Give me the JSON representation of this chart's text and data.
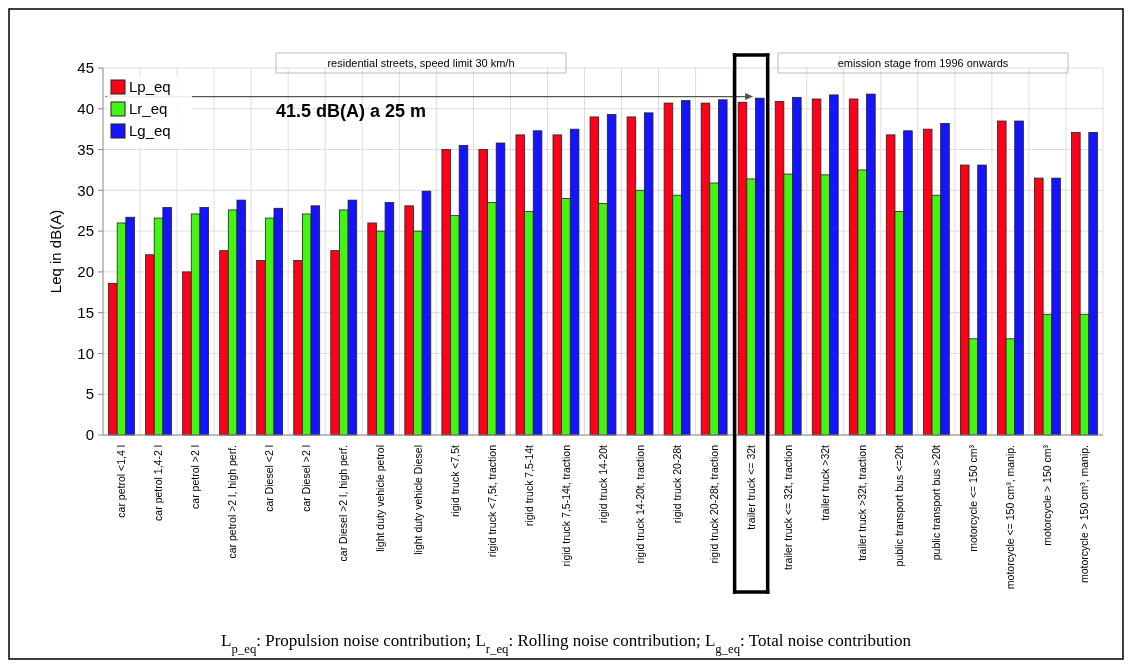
{
  "chart_data": {
    "type": "bar",
    "categories": [
      "car petrol <1,4 l",
      "car petrol 1,4-2 l",
      "car petrol >2 l",
      "car petrol >2 l, high perf.",
      "car Diesel <2 l",
      "car Diesel >2 l",
      "car Diesel >2 l, high perf.",
      "light duty vehicle petrol",
      "light duty vehicle Diesel",
      "rigid truck <7,5t",
      "rigid truck <7,5t,  traction",
      "rigid truck 7,5-14t",
      "rigid truck 7,5-14t, traction",
      "rigid truck 14-20t",
      "rigid truck 14-20t, traction",
      "rigid truck 20-28t",
      "rigid truck 20-28t, traction",
      "trailer truck <= 32t",
      "trailer truck <= 32t, traction",
      "trailer truck >32t",
      "trailer truck >32t, traction",
      "public transport bus <=20t",
      "public transport bus >20t",
      "motorcycle  <= 150 cm³",
      "motorcycle <= 150 cm³, manip.",
      "motorcycle > 150 cm³",
      "motorcycle > 150 cm³, manip."
    ],
    "series": [
      {
        "name": "Lp_eq",
        "color": "#ff0019",
        "values": [
          18.6,
          22.1,
          20,
          22.6,
          21.4,
          21.4,
          22.6,
          26,
          28.1,
          35,
          35,
          36.8,
          36.8,
          39,
          39,
          40.7,
          40.7,
          40.8,
          40.9,
          41.2,
          41.2,
          36.8,
          37.5,
          33.1,
          38.5,
          31.5,
          37.1
        ]
      },
      {
        "name": "Lr_eq",
        "color": "#44f514",
        "values": [
          26,
          26.6,
          27.1,
          27.6,
          26.6,
          27.1,
          27.6,
          25,
          25,
          26.9,
          28.5,
          27.4,
          29,
          28.4,
          30,
          29.4,
          30.9,
          31.4,
          32,
          31.9,
          32.5,
          27.4,
          29.4,
          11.8,
          11.8,
          14.8,
          14.8
        ]
      },
      {
        "name": "Lg_eq",
        "color": "#1414ff",
        "values": [
          26.7,
          27.9,
          27.9,
          28.8,
          27.8,
          28.1,
          28.8,
          28.5,
          29.9,
          35.5,
          35.8,
          37.3,
          37.5,
          39.3,
          39.5,
          41,
          41.1,
          41.3,
          41.4,
          41.7,
          41.8,
          37.3,
          38.2,
          33.1,
          38.5,
          31.5,
          37.1
        ]
      }
    ],
    "ylabel": "Leq in dB(A)",
    "ylim": [
      0,
      45
    ],
    "yticks": [
      0,
      5,
      10,
      15,
      20,
      25,
      30,
      35,
      40,
      45
    ],
    "grid": true,
    "legend": "top left",
    "ref_lines": [
      {
        "axis": "y",
        "value": 41.5,
        "label": "41.5 dB(A) a 25 m",
        "color": "#555555"
      }
    ],
    "annotations": [
      "residential streets, speed limit 30 km/h",
      "emission stage from 1996 onwards",
      "L$_{p_eq}$: Propulsion noise contribution; L$_{r_eq}$: Rolling noise contribution; L$_{g_eq}$: Total noise contribution"
    ]
  }
}
